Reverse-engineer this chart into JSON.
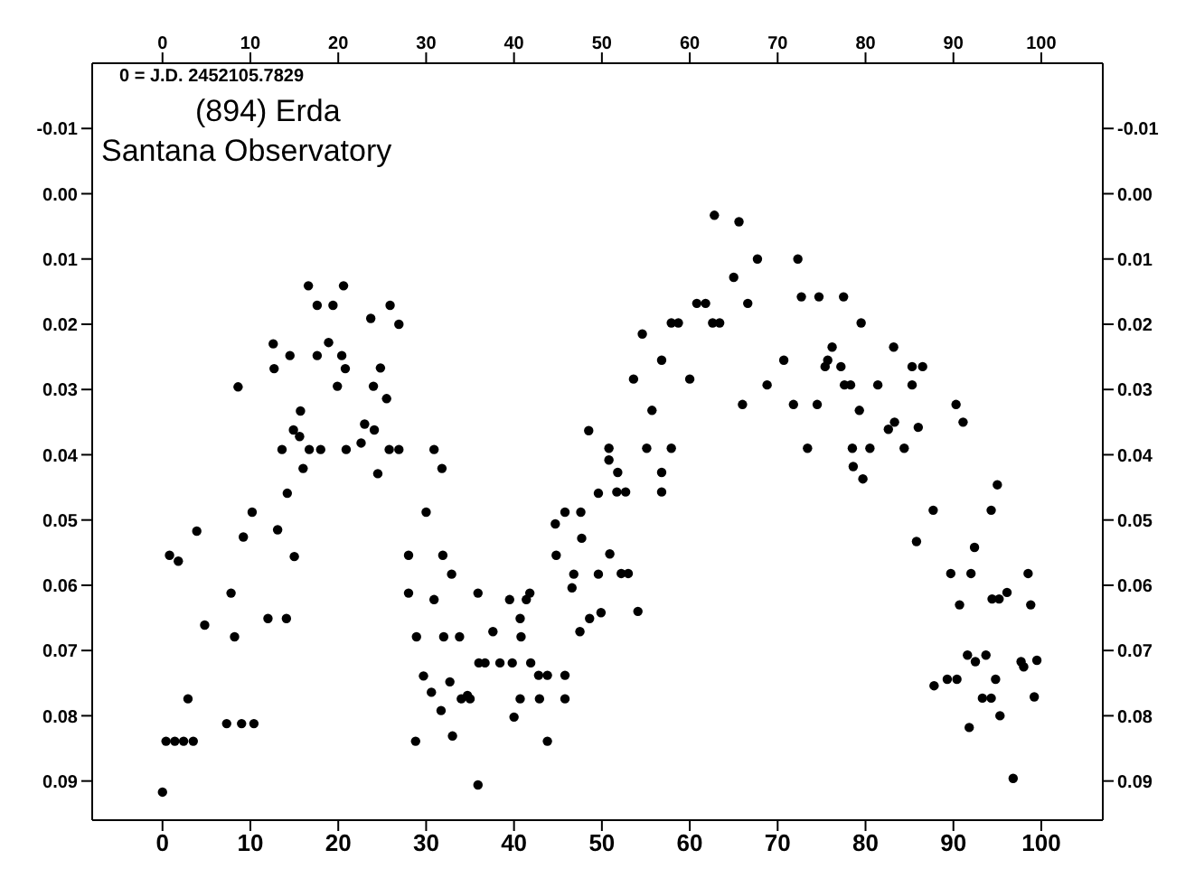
{
  "chart_data": {
    "type": "scatter",
    "title": "(894) Erda",
    "subtitle": "Santana Observatory",
    "annotations": [
      "0 = J.D. 2452105.7829"
    ],
    "x": [
      0,
      0.8,
      1.8,
      0.4,
      1.4,
      2.4,
      3.5,
      2.9,
      3.9,
      4.8,
      7.3,
      7.8,
      8.2,
      8.6,
      9.2,
      9.0,
      10.4,
      10.2,
      12.0,
      12.6,
      12.7,
      13.1,
      13.6,
      14.1,
      14.2,
      14.5,
      14.9,
      15.0,
      15.6,
      15.7,
      16.0,
      16.6,
      16.7,
      17.6,
      17.6,
      18.0,
      18.9,
      19.4,
      19.9,
      20.4,
      20.6,
      20.8,
      20.9,
      22.6,
      23.0,
      23.7,
      24.0,
      24.1,
      24.5,
      24.8,
      25.5,
      25.9,
      25.8,
      26.9,
      26.9,
      28.0,
      28.0,
      28.8,
      28.9,
      29.7,
      30.0,
      30.6,
      30.9,
      30.9,
      31.7,
      31.8,
      31.9,
      32.0,
      32.7,
      32.9,
      33.0,
      33.8,
      34.0,
      34.7,
      35.0,
      35.9,
      35.9,
      36.0,
      36.7,
      37.6,
      38.4,
      39.5,
      39.8,
      40.0,
      40.7,
      40.7,
      40.8,
      41.4,
      41.8,
      41.9,
      42.8,
      42.9,
      43.8,
      43.8,
      44.7,
      44.8,
      45.8,
      45.8,
      45.8,
      46.8,
      46.6,
      47.5,
      47.6,
      47.7,
      48.5,
      48.6,
      49.6,
      49.6,
      49.9,
      50.8,
      50.8,
      50.9,
      51.8,
      51.7,
      52.7,
      52.2,
      53.0,
      53.6,
      54.1,
      54.6,
      55.1,
      55.7,
      56.8,
      56.8,
      56.8,
      57.9,
      57.9,
      58.7,
      60.0,
      60.8,
      61.8,
      62.6,
      63.4,
      62.8,
      65.0,
      65.6,
      66.0,
      66.6,
      67.7,
      68.8,
      70.7,
      71.8,
      72.3,
      72.7,
      73.4,
      74.5,
      74.7,
      75.4,
      75.7,
      76.2,
      77.2,
      77.5,
      77.6,
      78.3,
      78.6,
      78.5,
      79.3,
      79.5,
      79.7,
      80.5,
      81.4,
      82.6,
      83.2,
      83.3,
      84.4,
      85.3,
      85.3,
      86.0,
      86.5,
      85.8,
      87.7,
      87.8,
      89.3,
      89.7,
      90.3,
      90.4,
      90.7,
      91.1,
      91.6,
      91.8,
      92.0,
      92.4,
      92.5,
      93.3,
      93.7,
      94.3,
      94.3,
      94.4,
      94.8,
      95.0,
      95.2,
      95.3,
      96.1,
      96.8,
      97.7,
      98.0,
      98.5,
      98.8,
      99.2,
      99.5
    ],
    "values": [
      0.0917,
      0.0554,
      0.0563,
      0.0839,
      0.0839,
      0.0839,
      0.0839,
      0.0774,
      0.0517,
      0.0661,
      0.0812,
      0.0612,
      0.0679,
      0.0296,
      0.0526,
      0.0812,
      0.0812,
      0.0488,
      0.0651,
      0.023,
      0.0268,
      0.0515,
      0.0392,
      0.0651,
      0.0459,
      0.0248,
      0.0362,
      0.0556,
      0.0372,
      0.0333,
      0.0421,
      0.0141,
      0.0392,
      0.0248,
      0.0171,
      0.0392,
      0.0228,
      0.0171,
      0.0295,
      0.0248,
      0.0141,
      0.0268,
      0.0392,
      0.0382,
      0.0353,
      0.0191,
      0.0295,
      0.0362,
      0.0429,
      0.0267,
      0.0314,
      0.0171,
      0.0392,
      0.02,
      0.0392,
      0.0554,
      0.0612,
      0.0839,
      0.0679,
      0.0739,
      0.0488,
      0.0764,
      0.0392,
      0.0622,
      0.0792,
      0.0421,
      0.0554,
      0.0679,
      0.0748,
      0.0583,
      0.0831,
      0.0679,
      0.0774,
      0.0769,
      0.0774,
      0.0612,
      0.0906,
      0.0719,
      0.0719,
      0.0671,
      0.0719,
      0.0622,
      0.0719,
      0.0802,
      0.0651,
      0.0774,
      0.0679,
      0.0622,
      0.0612,
      0.0719,
      0.0738,
      0.0774,
      0.0738,
      0.0839,
      0.0506,
      0.0554,
      0.0488,
      0.0738,
      0.0774,
      0.0583,
      0.0604,
      0.0671,
      0.0488,
      0.0528,
      0.0363,
      0.0651,
      0.0459,
      0.0583,
      0.0642,
      0.039,
      0.0408,
      0.0552,
      0.0427,
      0.0457,
      0.0457,
      0.0582,
      0.0582,
      0.0284,
      0.064,
      0.0215,
      0.039,
      0.0332,
      0.0255,
      0.0427,
      0.0457,
      0.039,
      0.0198,
      0.0198,
      0.0284,
      0.0168,
      0.0168,
      0.0198,
      0.0198,
      0.0033,
      0.0128,
      0.0043,
      0.0323,
      0.0168,
      0.01,
      0.0293,
      0.0255,
      0.0323,
      0.01,
      0.0158,
      0.039,
      0.0323,
      0.0158,
      0.0265,
      0.0255,
      0.0235,
      0.0265,
      0.0158,
      0.0293,
      0.0293,
      0.0418,
      0.039,
      0.0332,
      0.0198,
      0.0437,
      0.039,
      0.0293,
      0.0361,
      0.0235,
      0.035,
      0.039,
      0.0265,
      0.0293,
      0.0358,
      0.0265,
      0.0533,
      0.0485,
      0.0754,
      0.0744,
      0.0582,
      0.0323,
      0.0744,
      0.063,
      0.035,
      0.0707,
      0.0818,
      0.0582,
      0.0542,
      0.0717,
      0.0773,
      0.0707,
      0.0485,
      0.0773,
      0.0621,
      0.0744,
      0.0446,
      0.0621,
      0.08,
      0.0611,
      0.0896,
      0.0717,
      0.0725,
      0.0582,
      0.063,
      0.0771,
      0.0715
    ],
    "color": "#000000",
    "marker": "circle",
    "grid": false,
    "xlim": [
      -8,
      107
    ],
    "xticks": [
      0,
      10,
      20,
      30,
      40,
      50,
      60,
      70,
      80,
      90,
      100
    ],
    "x2lim": [
      -8,
      107
    ],
    "x2ticks": [
      0,
      10,
      20,
      30,
      40,
      50,
      60,
      70,
      80,
      90,
      100
    ],
    "ylim": [
      0.096,
      -0.02
    ],
    "yticks": [
      -0.01,
      {
        "value": 0,
        "label": "0.00"
      },
      0.01,
      0.02,
      0.03,
      0.04,
      0.05,
      0.06,
      0.07,
      0.08,
      0.09
    ],
    "y2lim": [
      0.096,
      -0.02
    ],
    "y2ticks": [
      -0.01,
      {
        "value": 0,
        "label": "0.00"
      },
      0.01,
      0.02,
      0.03,
      0.04,
      0.05,
      0.06,
      0.07,
      0.08,
      0.09
    ]
  }
}
